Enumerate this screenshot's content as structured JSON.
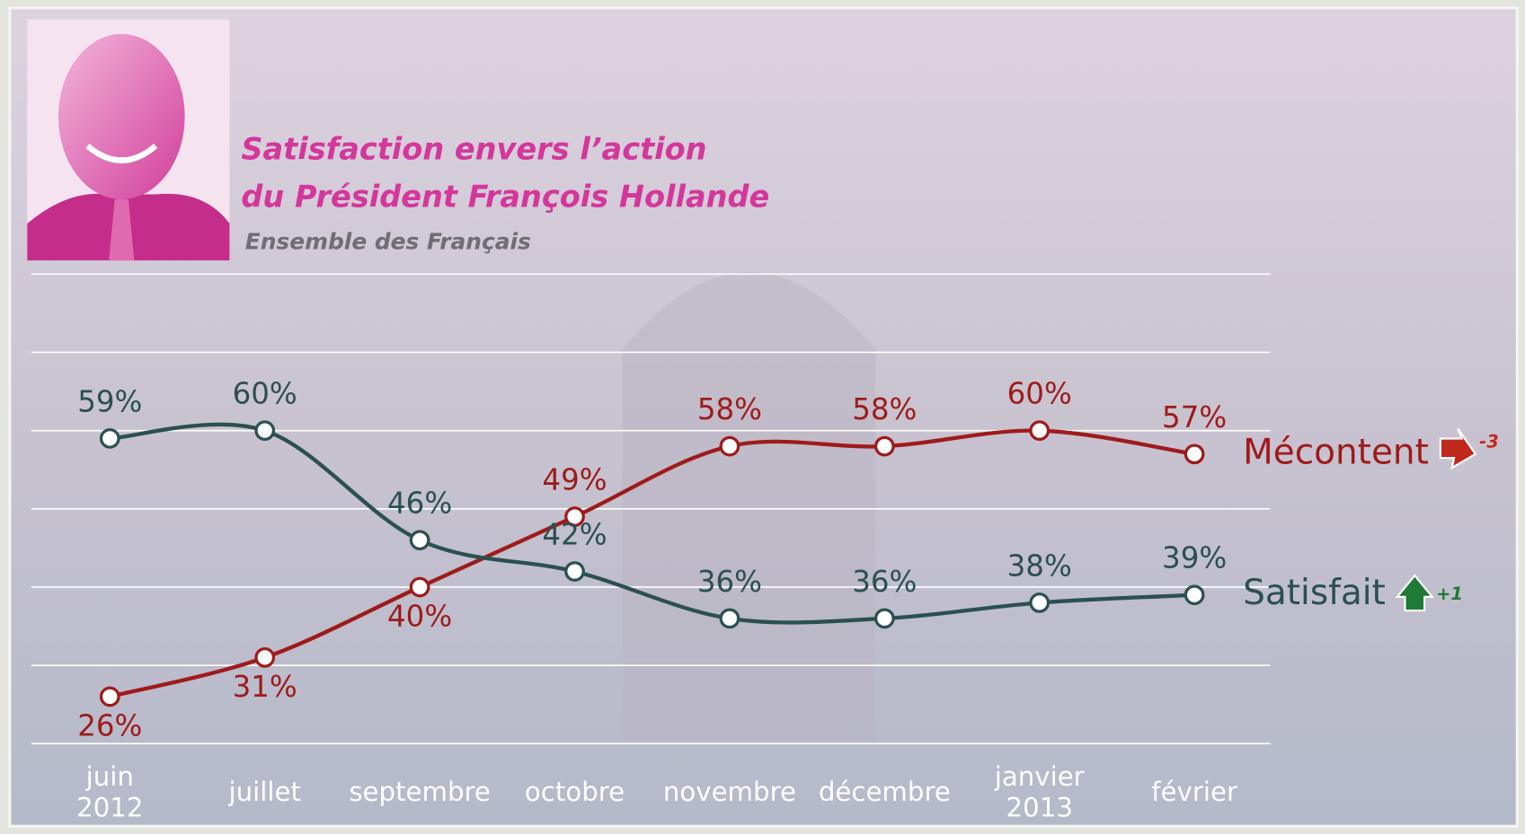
{
  "chart_data": {
    "type": "line",
    "title": [
      "Satisfaction envers l’action",
      "du Président François Hollande"
    ],
    "subtitle": "Ensemble des Français",
    "categories": [
      "juin 2012",
      "juillet",
      "septembre",
      "octobre",
      "novembre",
      "décembre",
      "janvier 2013",
      "février"
    ],
    "series": [
      {
        "name": "Mécontent",
        "color": "#9e1b1b",
        "values": [
          26,
          31,
          40,
          49,
          58,
          58,
          60,
          57
        ],
        "value_labels": [
          "26%",
          "31%",
          "40%",
          "49%",
          "58%",
          "58%",
          "60%",
          "57%"
        ],
        "change": "-3",
        "change_color": "#c0281b"
      },
      {
        "name": "Satisfait",
        "color": "#2b5050",
        "values": [
          59,
          60,
          46,
          42,
          36,
          36,
          38,
          39
        ],
        "value_labels": [
          "59%",
          "60%",
          "46%",
          "42%",
          "36%",
          "36%",
          "38%",
          "39%"
        ],
        "change": "+1",
        "change_color": "#1f7a35"
      }
    ],
    "ylim": [
      20,
      80
    ],
    "yticks": [
      20,
      30,
      40,
      50,
      60,
      70,
      80
    ],
    "grid": true
  }
}
